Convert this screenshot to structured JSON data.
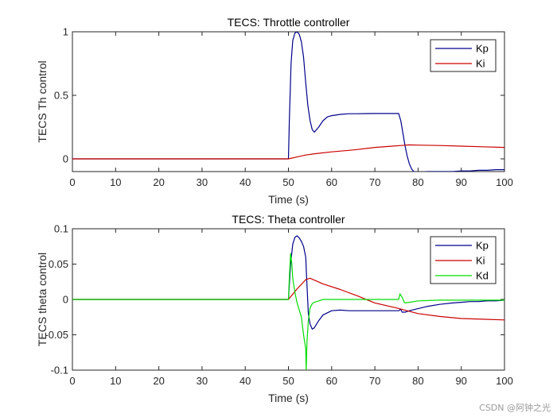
{
  "chart_data": [
    {
      "type": "line",
      "title": "TECS: Throttle controller",
      "xlabel": "Time (s)",
      "ylabel": "TECS Th control",
      "xlim": [
        0,
        100
      ],
      "ylim": [
        -0.1,
        1.0
      ],
      "xticks": [
        0,
        10,
        20,
        30,
        40,
        50,
        60,
        70,
        80,
        90,
        100
      ],
      "yticks": [
        0,
        0.5,
        1
      ],
      "ytick_labels": [
        "0",
        "0.5",
        "1"
      ],
      "legend_position": "top-right",
      "series": [
        {
          "name": "Kp",
          "color": "#00008b",
          "x": [
            0,
            50,
            50.2,
            50.6,
            51,
            51.5,
            52,
            52.5,
            53,
            53.5,
            54,
            54.5,
            55,
            55.5,
            56,
            57,
            58,
            59,
            60,
            62,
            64,
            66,
            68,
            70,
            72,
            74,
            75.5,
            76,
            76.5,
            77,
            77.5,
            78,
            78.5,
            79,
            80,
            81,
            82,
            84,
            86,
            88,
            90,
            92,
            94,
            96,
            98,
            100
          ],
          "y": [
            0,
            0,
            0.3,
            0.75,
            0.93,
            0.99,
            1.0,
            0.98,
            0.92,
            0.8,
            0.6,
            0.42,
            0.3,
            0.23,
            0.21,
            0.25,
            0.3,
            0.33,
            0.34,
            0.35,
            0.355,
            0.355,
            0.356,
            0.357,
            0.357,
            0.357,
            0.357,
            0.3,
            0.2,
            0.1,
            0.02,
            -0.04,
            -0.08,
            -0.1,
            -0.105,
            -0.105,
            -0.1,
            -0.1,
            -0.1,
            -0.1,
            -0.095,
            -0.095,
            -0.09,
            -0.09,
            -0.085,
            -0.085
          ]
        },
        {
          "name": "Ki",
          "color": "#cc0000",
          "x": [
            0,
            50,
            52,
            54,
            56,
            60,
            65,
            70,
            74,
            76,
            78,
            80,
            85,
            90,
            95,
            100
          ],
          "y": [
            0,
            0,
            0.015,
            0.03,
            0.04,
            0.055,
            0.07,
            0.09,
            0.1,
            0.105,
            0.11,
            0.108,
            0.105,
            0.1,
            0.095,
            0.09
          ]
        }
      ]
    },
    {
      "type": "line",
      "title": "TECS: Theta controller",
      "xlabel": "Time (s)",
      "ylabel": "TECS theta control",
      "xlim": [
        0,
        100
      ],
      "ylim": [
        -0.1,
        0.1
      ],
      "xticks": [
        0,
        10,
        20,
        30,
        40,
        50,
        60,
        70,
        80,
        90,
        100
      ],
      "yticks": [
        -0.1,
        -0.05,
        0,
        0.05,
        0.1
      ],
      "ytick_labels": [
        "-0.1",
        "-0.05",
        "0",
        "0.05",
        "0.1"
      ],
      "legend_position": "top-right",
      "series": [
        {
          "name": "Kp",
          "color": "#00008b",
          "x": [
            0,
            50,
            50.5,
            51,
            51.5,
            52,
            52.5,
            53,
            53.5,
            54,
            54.3,
            54.6,
            55,
            55.5,
            56,
            57,
            58,
            60,
            62,
            64,
            66,
            68,
            70,
            72,
            74,
            75.5,
            76,
            76.3,
            77,
            78,
            80,
            82,
            85,
            88,
            90,
            92,
            94,
            96,
            98,
            100
          ],
          "y": [
            0,
            0,
            0.05,
            0.078,
            0.088,
            0.09,
            0.087,
            0.082,
            0.075,
            0.06,
            0.02,
            -0.02,
            -0.035,
            -0.042,
            -0.04,
            -0.03,
            -0.022,
            -0.016,
            -0.015,
            -0.016,
            -0.016,
            -0.016,
            -0.016,
            -0.016,
            -0.016,
            -0.016,
            -0.014,
            -0.018,
            -0.018,
            -0.016,
            -0.013,
            -0.01,
            -0.007,
            -0.005,
            -0.004,
            -0.003,
            -0.003,
            -0.002,
            -0.002,
            -0.001
          ]
        },
        {
          "name": "Ki",
          "color": "#cc0000",
          "x": [
            0,
            50,
            52,
            54,
            55,
            58,
            62,
            66,
            70,
            75,
            80,
            85,
            90,
            95,
            100
          ],
          "y": [
            0,
            0,
            0.015,
            0.028,
            0.03,
            0.022,
            0.014,
            0.005,
            -0.005,
            -0.012,
            -0.02,
            -0.024,
            -0.027,
            -0.028,
            -0.029
          ]
        },
        {
          "name": "Kd",
          "color": "#00dd00",
          "x": [
            0,
            50,
            50.2,
            50.5,
            50.8,
            51,
            51.5,
            52,
            52.5,
            53,
            53.5,
            54,
            54.1,
            54.3,
            54.6,
            55,
            55.5,
            56,
            57,
            58,
            60,
            62,
            64,
            66,
            68,
            70,
            72,
            74,
            75.5,
            75.8,
            76,
            76.4,
            76.8,
            77,
            78,
            80,
            85,
            90,
            95,
            100
          ],
          "y": [
            0,
            0,
            0.03,
            0.065,
            0.05,
            0.03,
            0.01,
            -0.005,
            -0.015,
            -0.025,
            -0.05,
            -0.07,
            -0.1,
            -0.06,
            -0.03,
            -0.012,
            -0.006,
            -0.004,
            -0.002,
            0,
            0,
            0,
            0,
            0,
            0,
            0,
            0,
            0,
            0,
            0.008,
            0.006,
            0.002,
            -0.004,
            -0.005,
            -0.004,
            -0.002,
            -0.001,
            -0.001,
            -0.001,
            -0.001
          ]
        }
      ]
    }
  ],
  "watermark": "CSDN @阿钟之光"
}
